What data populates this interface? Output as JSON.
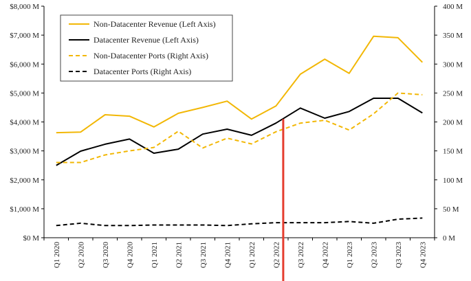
{
  "chart_data": {
    "type": "line",
    "categories": [
      "Q1 2020",
      "Q2 2020",
      "Q3 2020",
      "Q4 2020",
      "Q1 2021",
      "Q2 2021",
      "Q3 2021",
      "Q4 2021",
      "Q1 2022",
      "Q2 2022",
      "Q3 2022",
      "Q4 2022",
      "Q1 2023",
      "Q2 2023",
      "Q3 2023",
      "Q4 2023"
    ],
    "left_axis": {
      "ylim": [
        0,
        8000
      ],
      "ticks": [
        "$0 M",
        "$1,000 M",
        "$2,000 M",
        "$3,000 M",
        "$4,000 M",
        "$5,000 M",
        "$6,000 M",
        "$7,000 M",
        "$8,000 M"
      ]
    },
    "right_axis": {
      "ylim": [
        0,
        400
      ],
      "ticks": [
        "0 M",
        "50 M",
        "100 M",
        "150 M",
        "200 M",
        "250 M",
        "300 M",
        "350 M",
        "400 M"
      ]
    },
    "series": [
      {
        "name": "Non-Datacenter Revenue (Left Axis)",
        "axis": "left",
        "color": "#F2B705",
        "dash": "solid",
        "values": [
          3630,
          3650,
          4250,
          4200,
          3830,
          4300,
          4500,
          4720,
          4100,
          4550,
          5650,
          6170,
          5680,
          6960,
          6910,
          6060
        ]
      },
      {
        "name": "Datacenter Revenue (Left Axis)",
        "axis": "left",
        "color": "#000000",
        "dash": "solid",
        "values": [
          2500,
          2990,
          3230,
          3410,
          2920,
          3060,
          3580,
          3750,
          3540,
          3960,
          4480,
          4130,
          4360,
          4820,
          4820,
          4310
        ]
      },
      {
        "name": "Non-Datacenter Ports (Right Axis)",
        "axis": "right",
        "color": "#F2B705",
        "dash": "dashed",
        "values": [
          130,
          130,
          143,
          150,
          156,
          184,
          155,
          172,
          162,
          183,
          198,
          203,
          186,
          214,
          250,
          247
        ]
      },
      {
        "name": "Datacenter Ports (Right Axis)",
        "axis": "right",
        "color": "#000000",
        "dash": "dashed",
        "values": [
          21,
          25,
          21,
          21,
          22,
          22,
          22,
          21,
          24,
          26,
          26,
          26,
          28,
          25,
          32,
          34
        ]
      }
    ],
    "annotation": {
      "type": "vertical-line",
      "between": [
        "Q2 2022",
        "Q3 2022"
      ],
      "position": 0.3,
      "color": "#E53C2E"
    },
    "legend": "top-left",
    "grid": false
  }
}
